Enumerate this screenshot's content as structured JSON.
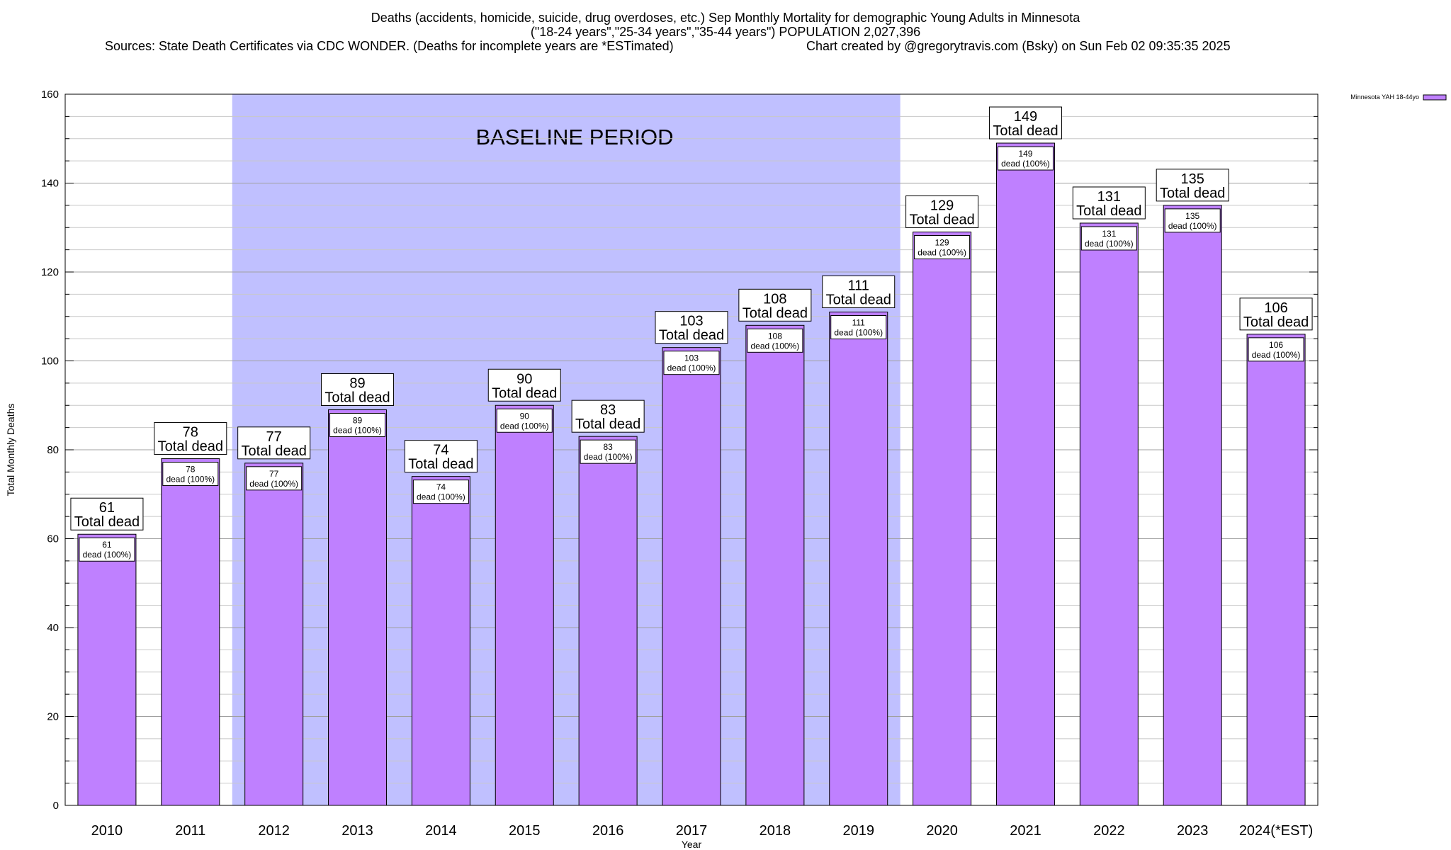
{
  "chart_data": {
    "type": "bar",
    "title": "Deaths (accidents, homicide, suicide, drug overdoses, etc.) Sep Monthly Mortality for demographic Young Adults in Minnesota",
    "subtitle": "(\"18-24 years\",\"25-34 years\",\"35-44 years\") POPULATION 2,027,396",
    "sources": "Sources: State Death Certificates via CDC WONDER. (Deaths for incomplete years are *ESTimated)",
    "credit": "Chart created by @gregorytravis.com (Bsky) on Sun Feb 02 09:35:35 2025",
    "xlabel": "Year",
    "ylabel": "Total Monthly Deaths",
    "ylim": [
      0,
      160
    ],
    "yticks": [
      0,
      20,
      40,
      60,
      80,
      100,
      120,
      140,
      160
    ],
    "grid": true,
    "legend_position": "top-right",
    "categories": [
      "2010",
      "2011",
      "2012",
      "2013",
      "2014",
      "2015",
      "2016",
      "2017",
      "2018",
      "2019",
      "2020",
      "2021",
      "2022",
      "2023",
      "2024(*EST)"
    ],
    "series": [
      {
        "name": "Minnesota YAH 18-44yo",
        "color": "#bf80ff",
        "values": [
          61,
          78,
          77,
          89,
          74,
          90,
          83,
          103,
          108,
          111,
          129,
          149,
          131,
          135,
          106
        ]
      }
    ],
    "total_label": "Total dead",
    "segment_label": "dead (100%)",
    "baseline": {
      "label": "BASELINE PERIOD",
      "start": "2012",
      "end": "2019",
      "color": "#c0c0ff"
    }
  }
}
